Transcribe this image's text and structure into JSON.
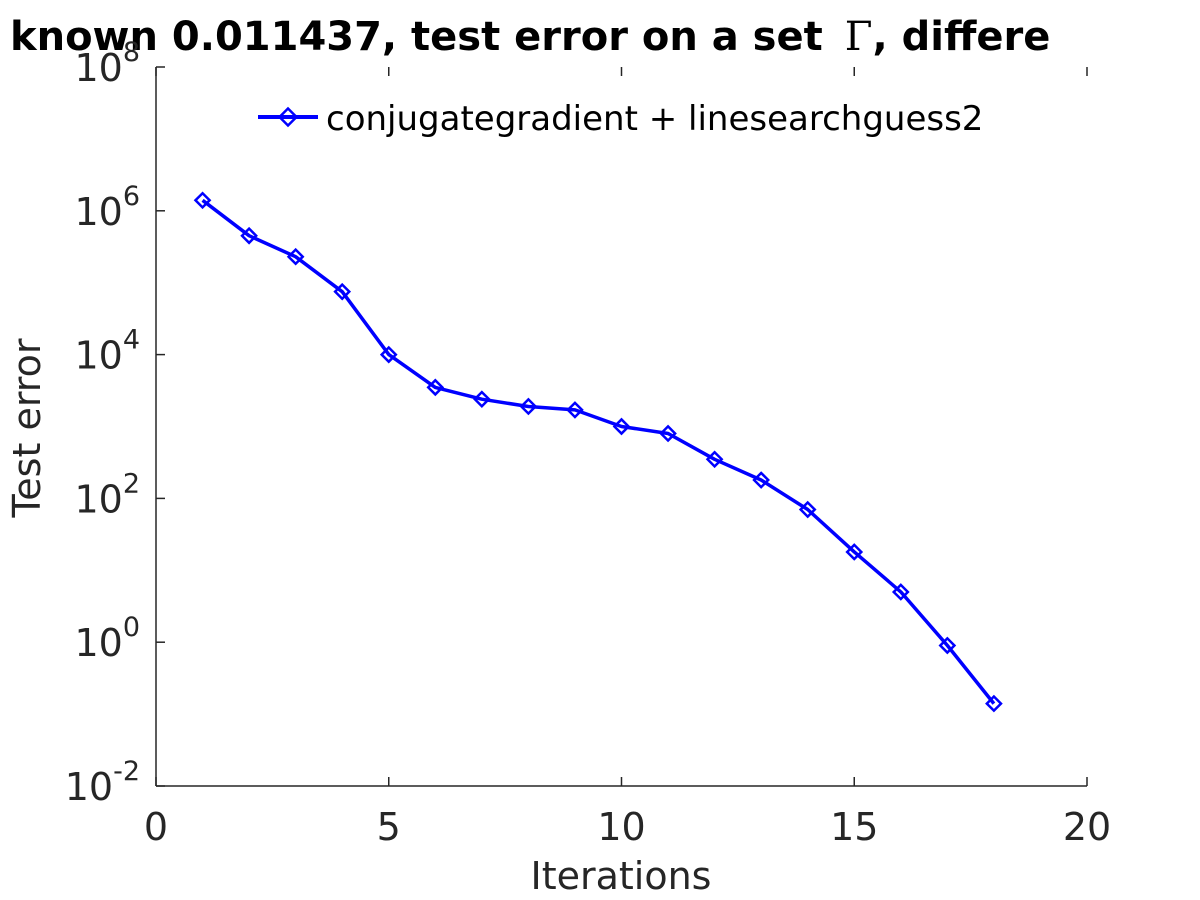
{
  "chart_data": {
    "type": "line",
    "title_prefix": "known 0.011437, test error on a set",
    "title_symbol": "Γ",
    "title_suffix": ", differe",
    "xlabel": "Iterations",
    "ylabel": "Test error",
    "xlim": [
      0,
      20
    ],
    "ylim": [
      0.01,
      100000000
    ],
    "yscale": "log",
    "xticks": [
      {
        "value": 0,
        "label": "0"
      },
      {
        "value": 5,
        "label": "5"
      },
      {
        "value": 10,
        "label": "10"
      },
      {
        "value": 15,
        "label": "15"
      },
      {
        "value": 20,
        "label": "20"
      }
    ],
    "yticks": [
      {
        "value": 0.01,
        "base": "10",
        "exp": "-2"
      },
      {
        "value": 1,
        "base": "10",
        "exp": "0"
      },
      {
        "value": 100,
        "base": "10",
        "exp": "2"
      },
      {
        "value": 10000,
        "base": "10",
        "exp": "4"
      },
      {
        "value": 1000000,
        "base": "10",
        "exp": "6"
      },
      {
        "value": 100000000,
        "base": "10",
        "exp": "8"
      }
    ],
    "grid": false,
    "legend_position": "top-center",
    "series": [
      {
        "name": "conjugategradient + linesearchguess2",
        "color": "#0000ff",
        "marker": "diamond",
        "x": [
          1,
          2,
          3,
          4,
          5,
          6,
          7,
          8,
          9,
          10,
          11,
          12,
          13,
          14,
          15,
          16,
          17,
          18
        ],
        "y": [
          1400000,
          450000,
          230000,
          75000,
          10000,
          3500,
          2400,
          1900,
          1700,
          1000,
          800,
          350,
          180,
          70,
          18,
          5,
          0.9,
          0.14
        ]
      }
    ]
  }
}
